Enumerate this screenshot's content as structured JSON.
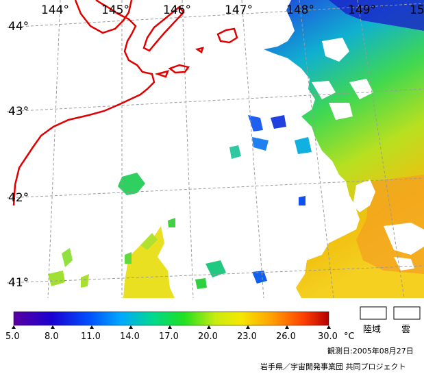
{
  "map": {
    "longitude_labels": [
      "144°",
      "145°",
      "146°",
      "147°",
      "148°",
      "149°",
      "15"
    ],
    "latitude_labels": [
      "44°",
      "43°",
      "42°",
      "41°"
    ]
  },
  "colorbar": {
    "ticks": [
      "5.0",
      "8.0",
      "11.0",
      "14.0",
      "17.0",
      "20.0",
      "23.0",
      "26.0",
      "30.0"
    ],
    "unit": "°C",
    "colors": [
      "#5a00a0",
      "#0000c8",
      "#0050ff",
      "#00aaff",
      "#00d8a0",
      "#00e020",
      "#a0e820",
      "#f0f000",
      "#ffa000",
      "#ff4000",
      "#c80000"
    ]
  },
  "legend": {
    "land_label": "陸域",
    "cloud_label": "雲"
  },
  "observation_date": "観測日:2005年08月27日",
  "credit": "岩手県／宇宙開発事業団 共同プロジェクト",
  "colors": {
    "coast": "#e00000",
    "grid": "#9a9a9a"
  }
}
